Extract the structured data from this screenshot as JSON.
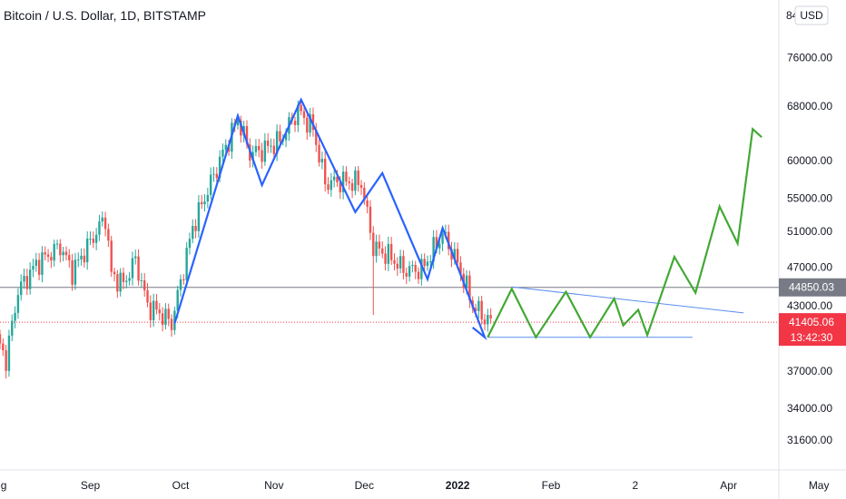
{
  "title": "Bitcoin / U.S. Dollar, 1D, BITSTAMP",
  "currency": "USD",
  "top_tick_fragment": "84",
  "colors": {
    "up": "#26a69a",
    "down": "#ef5350",
    "pattern_blue": "#2962ff",
    "projection_green": "#43a835",
    "triangle_line": "#5b8def",
    "level_line": "#787b86",
    "price_tag": "#f23645",
    "level_tag": "#787b86"
  },
  "chart_data": {
    "type": "candlestick",
    "title": "Bitcoin / U.S. Dollar, 1D, BITSTAMP",
    "y_scale": "log",
    "ylim": [
      29500,
      86000
    ],
    "y_ticks": [
      76000,
      68000,
      60000,
      55000,
      51000,
      47000,
      43000,
      37000,
      34000,
      31600
    ],
    "y_tick_labels": [
      "76000.00",
      "68000.00",
      "60000.00",
      "55000.00",
      "51000.00",
      "47000.00",
      "43000.00",
      "37000.00",
      "34000.00",
      "31600.00"
    ],
    "x_tick_labels": [
      "Aug",
      "Sep",
      "Oct",
      "Nov",
      "Dec",
      "2022",
      "Feb",
      "2",
      "Apr",
      "May"
    ],
    "xlim": [
      "2021-08-02",
      "2022-05-10"
    ],
    "x_ticks": [
      "2021-08-01",
      "2021-09-01",
      "2021-10-01",
      "2021-11-01",
      "2021-12-01",
      "2022-01-01",
      "2022-02-01",
      "2022-03-01",
      "2022-04-01",
      "2022-05-01"
    ],
    "horizontal_level": {
      "value": 44850.03,
      "label": "44850.03"
    },
    "last_price": {
      "value": 41405.06,
      "label": "41405.06",
      "countdown": "13:42:30"
    },
    "close_trend": [
      {
        "date": "2021-08-01",
        "close": 39800
      },
      {
        "date": "2021-08-04",
        "close": 38000
      },
      {
        "date": "2021-08-08",
        "close": 44500
      },
      {
        "date": "2021-08-14",
        "close": 47300
      },
      {
        "date": "2021-08-22",
        "close": 49300
      },
      {
        "date": "2021-08-26",
        "close": 46500
      },
      {
        "date": "2021-09-06",
        "close": 52700
      },
      {
        "date": "2021-09-08",
        "close": 46200
      },
      {
        "date": "2021-09-12",
        "close": 45200
      },
      {
        "date": "2021-09-16",
        "close": 47800
      },
      {
        "date": "2021-09-20",
        "close": 43000
      },
      {
        "date": "2021-09-24",
        "close": 42300
      },
      {
        "date": "2021-09-28",
        "close": 41300
      },
      {
        "date": "2021-10-05",
        "close": 51500
      },
      {
        "date": "2021-10-15",
        "close": 61000
      },
      {
        "date": "2021-10-20",
        "close": 66000
      },
      {
        "date": "2021-10-24",
        "close": 61000
      },
      {
        "date": "2021-10-28",
        "close": 61400
      },
      {
        "date": "2021-11-03",
        "close": 62800
      },
      {
        "date": "2021-11-09",
        "close": 67300
      },
      {
        "date": "2021-11-14",
        "close": 64500
      },
      {
        "date": "2021-11-18",
        "close": 57000
      },
      {
        "date": "2021-11-24",
        "close": 57200
      },
      {
        "date": "2021-11-30",
        "close": 57000
      },
      {
        "date": "2021-12-04",
        "close": 49200
      },
      {
        "date": "2021-12-10",
        "close": 48000
      },
      {
        "date": "2021-12-14",
        "close": 46700
      },
      {
        "date": "2021-12-20",
        "close": 46700
      },
      {
        "date": "2021-12-27",
        "close": 50700
      },
      {
        "date": "2022-01-01",
        "close": 47400
      },
      {
        "date": "2022-01-06",
        "close": 43100
      },
      {
        "date": "2022-01-10",
        "close": 41800
      },
      {
        "date": "2022-01-12",
        "close": 41405.06
      }
    ],
    "pattern_path": [
      {
        "date": "2021-09-29",
        "value": 41300
      },
      {
        "date": "2021-10-20",
        "value": 66500
      },
      {
        "date": "2021-10-28",
        "value": 56700
      },
      {
        "date": "2021-11-10",
        "value": 69000
      },
      {
        "date": "2021-11-28",
        "value": 53300
      },
      {
        "date": "2021-12-07",
        "value": 58300
      },
      {
        "date": "2021-12-22",
        "value": 45700
      },
      {
        "date": "2021-12-27",
        "value": 51400
      },
      {
        "date": "2022-01-10",
        "value": 40000
      },
      {
        "date": "2022-01-06",
        "value": 40900
      }
    ],
    "projection_path": [
      {
        "date": "2022-01-11",
        "value": 40000
      },
      {
        "date": "2022-01-19",
        "value": 44700
      },
      {
        "date": "2022-01-27",
        "value": 40000
      },
      {
        "date": "2022-02-06",
        "value": 44400
      },
      {
        "date": "2022-02-14",
        "value": 40000
      },
      {
        "date": "2022-02-22",
        "value": 43700
      },
      {
        "date": "2022-02-25",
        "value": 41100
      },
      {
        "date": "2022-03-02",
        "value": 42600
      },
      {
        "date": "2022-03-05",
        "value": 40200
      },
      {
        "date": "2022-03-14",
        "value": 48100
      },
      {
        "date": "2022-03-21",
        "value": 44300
      },
      {
        "date": "2022-03-29",
        "value": 54000
      },
      {
        "date": "2022-04-04",
        "value": 49600
      },
      {
        "date": "2022-04-09",
        "value": 64500
      },
      {
        "date": "2022-04-12",
        "value": 63300
      }
    ],
    "triangle_upper": [
      {
        "date": "2022-01-19",
        "value": 44900
      },
      {
        "date": "2022-04-06",
        "value": 42300
      }
    ],
    "triangle_lower": [
      {
        "date": "2022-01-11",
        "value": 40000
      },
      {
        "date": "2022-03-20",
        "value": 40000
      }
    ]
  }
}
